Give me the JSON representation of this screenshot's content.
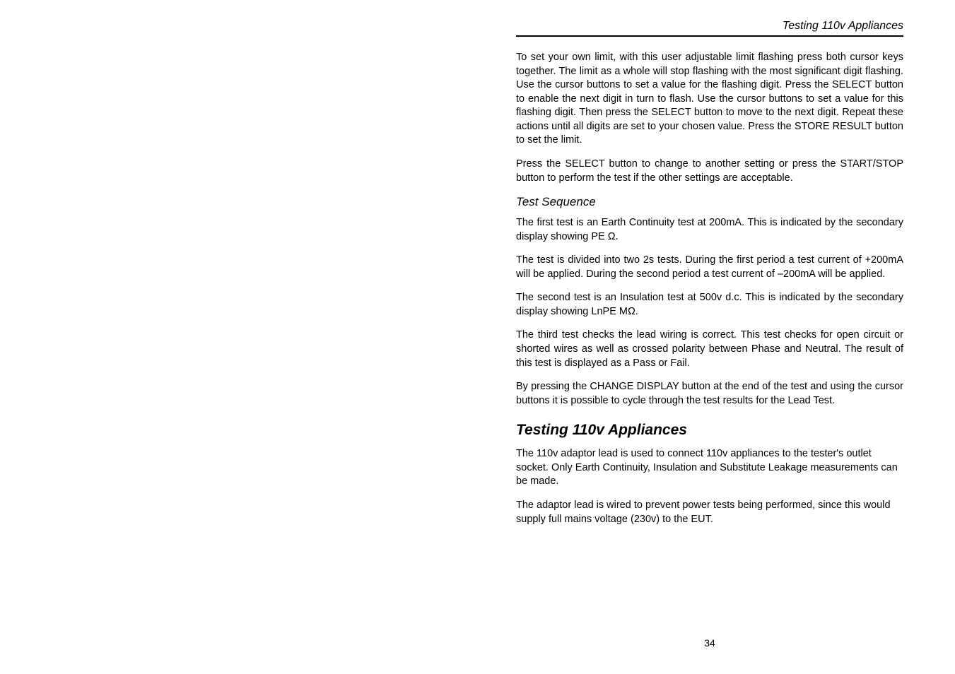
{
  "header": {
    "title": "Testing 110v Appliances"
  },
  "body": {
    "p1": "To set your own limit, with this user adjustable limit flashing press both cursor keys together. The limit as a whole will stop flashing with the most significant digit flashing. Use the cursor buttons to set a value for the flashing digit. Press the SELECT button to enable the next digit in turn to flash. Use the cursor buttons to set a value for this flashing digit. Then press the SELECT button to move to the next digit. Repeat these actions until all digits are set to your chosen value. Press the STORE RESULT button to set the limit.",
    "p2": "Press the SELECT button to change to another setting or press the START/STOP button to perform the test if the other settings are acceptable.",
    "h1": "Test Sequence",
    "p3": "The first test is an Earth Continuity test at 200mA. This is indicated by the secondary display showing PE Ω.",
    "p4": "The test is divided into two 2s tests. During the first period a test current of +200mA will be applied. During the second period a test current of –200mA will be applied.",
    "p5": "The second test is an Insulation test at 500v d.c. This is indicated by the secondary display showing LnPE MΩ.",
    "p6": "The third test checks the lead wiring is correct. This test checks for open circuit or shorted wires as well as crossed polarity between Phase and Neutral. The result of this test is displayed as a Pass or Fail.",
    "p7": "By pressing the CHANGE DISPLAY button at the end of the test and using the cursor buttons it is possible to cycle through the test results for the Lead Test.",
    "h2": "Testing 110v Appliances",
    "p8": "The 110v adaptor lead is used to connect 110v appliances to the tester's outlet socket. Only Earth Continuity, Insulation and Substitute Leakage measurements can be made.",
    "p9": "The adaptor lead is wired to prevent power tests being performed, since this would supply full mains voltage (230v) to the EUT."
  },
  "footer": {
    "pagenum": "34"
  }
}
